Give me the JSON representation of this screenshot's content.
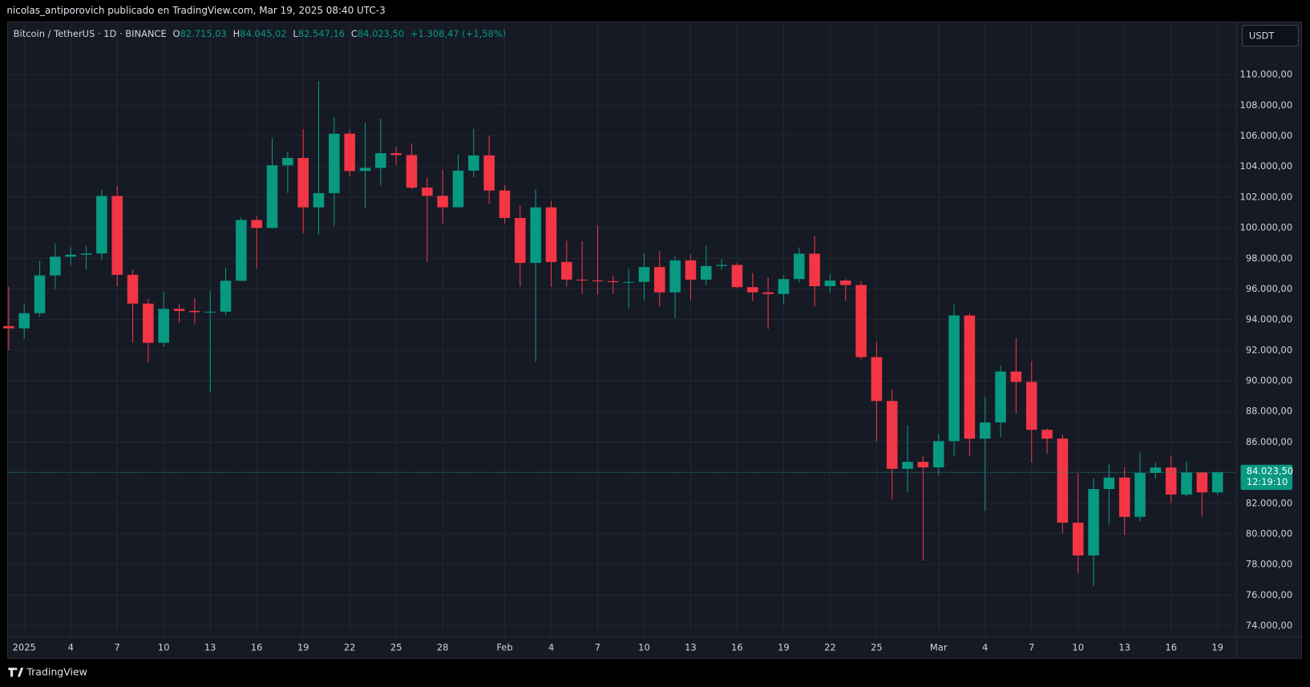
{
  "publisher_line": "nicolas_antiporovich publicado en TradingView.com, Mar 19, 2025 08:40 UTC-3",
  "footer_brand": "TradingView",
  "currency_button": "USDT",
  "legend": {
    "symbol": "Bitcoin / TetherUS · 1D · BINANCE",
    "ohlc": [
      {
        "key": "O",
        "value": "82.715,03"
      },
      {
        "key": "H",
        "value": "84.045,02"
      },
      {
        "key": "L",
        "value": "82.547,16"
      },
      {
        "key": "C",
        "value": "84.023,50"
      }
    ],
    "change": "+1.308,47 (+1,58%)"
  },
  "chart_data": {
    "type": "candlestick",
    "up_color": "#089981",
    "down_color": "#f23645",
    "grid": true,
    "categories": [
      null,
      "2025",
      null,
      null,
      "4",
      null,
      null,
      "7",
      null,
      null,
      "10",
      null,
      null,
      "13",
      null,
      null,
      "16",
      null,
      null,
      "19",
      null,
      null,
      "22",
      null,
      null,
      "25",
      null,
      null,
      "28",
      null,
      null,
      null,
      "Feb",
      null,
      null,
      "4",
      null,
      null,
      "7",
      null,
      null,
      "10",
      null,
      null,
      "13",
      null,
      null,
      "16",
      null,
      null,
      "19",
      null,
      null,
      "22",
      null,
      null,
      "25",
      null,
      null,
      null,
      "Mar",
      null,
      null,
      "4",
      null,
      null,
      "7",
      null,
      null,
      "10",
      null,
      null,
      "13",
      null,
      null,
      "16",
      null,
      null,
      "19"
    ],
    "open": [
      93576,
      93429,
      94419,
      96886,
      98107,
      98236,
      98314,
      102078,
      96922,
      95043,
      92484,
      94701,
      94566,
      94488,
      94516,
      96534,
      100505,
      99987,
      104078,
      104557,
      101331,
      102260,
      106144,
      103706,
      103910,
      104870,
      104746,
      102620,
      102082,
      101335,
      103733,
      104722,
      102429,
      100635,
      97700,
      101328,
      97763,
      96612,
      96554,
      96506,
      96444,
      96462,
      97430,
      95778,
      97869,
      96608,
      97500,
      97569,
      96118,
      95780,
      95671,
      96644,
      98305,
      96181,
      96551,
      96258,
      91552,
      88680,
      84250,
      84708,
      84349,
      86064,
      94270,
      86220,
      87281,
      90606,
      89931,
      86801,
      86222,
      80734,
      78595,
      82932,
      83680,
      81115,
      83983,
      84338,
      82574,
      84010,
      82715
    ],
    "high": [
      96150,
      95000,
      97839,
      98976,
      98734,
      98813,
      102482,
      102724,
      97258,
      95349,
      95836,
      95000,
      95400,
      95900,
      97371,
      100681,
      100781,
      105865,
      104988,
      106422,
      109588,
      107240,
      106394,
      106850,
      107120,
      105286,
      105500,
      103260,
      103800,
      104782,
      106457,
      106012,
      102783,
      101456,
      102500,
      101744,
      99149,
      99120,
      100137,
      96880,
      97323,
      98345,
      98478,
      98119,
      98249,
      98826,
      97970,
      97732,
      97046,
      96753,
      96899,
      98711,
      99475,
      96980,
      96650,
      96500,
      92540,
      89414,
      87078,
      85120,
      86558,
      95000,
      94416,
      88967,
      91000,
      92810,
      91283,
      86897,
      86500,
      83955,
      83617,
      84539,
      84336,
      85309,
      84676,
      85117,
      84756,
      84022,
      84045
    ],
    "low": [
      92000,
      92750,
      94201,
      96000,
      97533,
      97270,
      97900,
      96181,
      92500,
      91203,
      92206,
      93800,
      93700,
      89256,
      94316,
      96500,
      97332,
      99950,
      102277,
      99651,
      99550,
      100119,
      103339,
      101262,
      102750,
      104106,
      102505,
      97777,
      100273,
      101328,
      103299,
      101560,
      100279,
      96150,
      91231,
      96150,
      96155,
      95676,
      95620,
      95688,
      94713,
      95256,
      94876,
      94088,
      95234,
      96252,
      97232,
      96046,
      95205,
      93388,
      95029,
      96415,
      94871,
      95770,
      95227,
      91349,
      86050,
      82256,
      82716,
      78258,
      83824,
      85050,
      85117,
      81500,
      86334,
      87836,
      84667,
      85218,
      80000,
      77459,
      76606,
      80607,
      79939,
      80818,
      83618,
      82017,
      82456,
      81134,
      82547
    ],
    "close": [
      93429,
      94419,
      96886,
      98107,
      98236,
      98314,
      102078,
      96922,
      95043,
      92484,
      94701,
      94566,
      94488,
      94516,
      96534,
      100505,
      99987,
      104078,
      104557,
      101331,
      102260,
      106144,
      103706,
      103910,
      104870,
      104746,
      102620,
      102082,
      101335,
      103733,
      104722,
      102429,
      100635,
      97700,
      101328,
      97763,
      96612,
      96554,
      96506,
      96444,
      96462,
      97430,
      95778,
      97869,
      96608,
      97500,
      97569,
      96118,
      95780,
      95671,
      96644,
      98305,
      96181,
      96551,
      96258,
      91552,
      88680,
      84250,
      84708,
      84349,
      86064,
      94270,
      86220,
      87281,
      90606,
      89931,
      86801,
      86222,
      80734,
      78595,
      82932,
      83680,
      81115,
      83983,
      84338,
      82574,
      84010,
      82715,
      84023.5
    ],
    "ylim": [
      71866,
      113446
    ],
    "yticks": [
      {
        "value": 74000,
        "label": "74.000,00"
      },
      {
        "value": 76000,
        "label": "76.000,00"
      },
      {
        "value": 78000,
        "label": "78.000,00"
      },
      {
        "value": 80000,
        "label": "80.000,00"
      },
      {
        "value": 82000,
        "label": "82.000,00"
      },
      {
        "value": 84000,
        "label": "84.000,00"
      },
      {
        "value": 86000,
        "label": "86.000,00"
      },
      {
        "value": 88000,
        "label": "88.000,00"
      },
      {
        "value": 90000,
        "label": "90.000,00"
      },
      {
        "value": 92000,
        "label": "92.000,00"
      },
      {
        "value": 94000,
        "label": "94.000,00"
      },
      {
        "value": 96000,
        "label": "96.000,00"
      },
      {
        "value": 98000,
        "label": "98.000,00"
      },
      {
        "value": 100000,
        "label": "100.000,00"
      },
      {
        "value": 102000,
        "label": "102.000,00"
      },
      {
        "value": 104000,
        "label": "104.000,00"
      },
      {
        "value": 106000,
        "label": "106.000,00"
      },
      {
        "value": 108000,
        "label": "108.000,00"
      },
      {
        "value": 110000,
        "label": "110.000,00"
      }
    ],
    "last_price": {
      "value": 84023.5,
      "label": "84.023,50"
    },
    "countdown": "12:19:10"
  }
}
